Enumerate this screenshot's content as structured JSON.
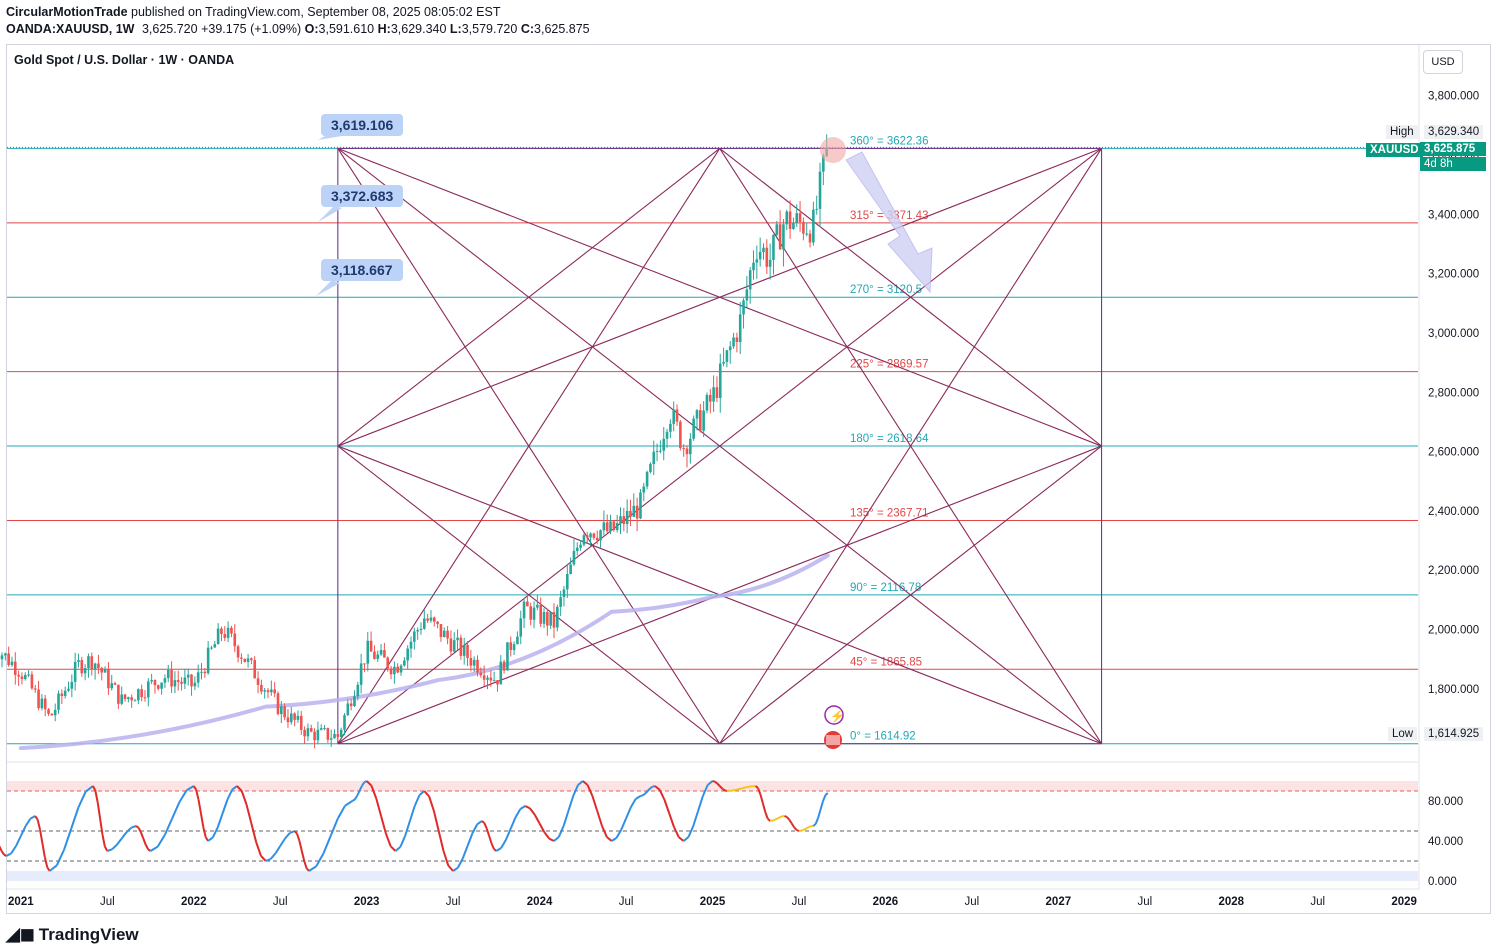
{
  "header": {
    "line1_author": "CircularMotionTrade",
    "line1_rest": " published on TradingView.com, September 08, 2025 08:05:02 EST",
    "symbol": "OANDA:XAUUSD, 1W",
    "last": "3,625.720",
    "change": "+39.175 (+1.09%)",
    "o_label": "O:",
    "o": "3,591.610",
    "h_label": "H:",
    "h": "3,629.340",
    "l_label": "L:",
    "l": "3,579.720",
    "c_label": "C:",
    "c": "3,625.875"
  },
  "chart_title": "Gold Spot / U.S. Dollar · 1W · OANDA",
  "currency_button": "USD",
  "callouts": [
    "3,619.106",
    "3,372.683",
    "3,118.667"
  ],
  "price_tags": {
    "high_label": "High",
    "high_value": "3,629.340",
    "symbol_tag": "XAUUSD",
    "last_value": "3,625.875",
    "countdown": "4d 8h",
    "low_label": "Low",
    "low_value": "1,614.925"
  },
  "footer": {
    "brand": "TradingView"
  },
  "colors": {
    "up": "#26a69a",
    "down": "#ef5350",
    "gann": "#8b2a5c",
    "teal_level": "#22a8b5",
    "red_level": "#e04848",
    "ma": "#b9b2ef",
    "osc_blue": "#2f8fe6",
    "osc_red": "#e02a2a",
    "osc_yellow": "#f5c518"
  },
  "chart_data": [
    {
      "type": "candlestick",
      "title": "Gold Spot / U.S. Dollar · 1W · OANDA",
      "ylim": [
        1560,
        3880
      ],
      "y_ticks": [
        1800,
        2000,
        2200,
        2400,
        2600,
        2800,
        3000,
        3200,
        3400,
        3600,
        3800
      ],
      "y_tick_labels": [
        "1,800.000",
        "2,000.000",
        "2,200.000",
        "2,400.000",
        "2,600.000",
        "2,800.000",
        "3,000.000",
        "3,200.000",
        "3,400.000",
        "3,600.000",
        "3,800.000"
      ],
      "x_tick_labels": [
        "2021",
        "Jul",
        "2022",
        "Jul",
        "2023",
        "Jul",
        "2024",
        "Jul",
        "2025",
        "Jul",
        "2026",
        "Jul",
        "2027",
        "Jul",
        "2028",
        "Jul",
        "2029"
      ],
      "x_tick_dates": [
        "2021-01",
        "2021-07",
        "2022-01",
        "2022-07",
        "2023-01",
        "2023-07",
        "2024-01",
        "2024-07",
        "2025-01",
        "2025-07",
        "2026-01",
        "2026-07",
        "2027-01",
        "2027-07",
        "2028-01",
        "2028-07",
        "2029-01"
      ],
      "price_path": [
        [
          "2020-11",
          1950
        ],
        [
          "2021-01",
          1860
        ],
        [
          "2021-03",
          1700
        ],
        [
          "2021-05",
          1880
        ],
        [
          "2021-06",
          1900
        ],
        [
          "2021-08",
          1760
        ],
        [
          "2021-11",
          1840
        ],
        [
          "2022-01",
          1810
        ],
        [
          "2022-03",
          2000
        ],
        [
          "2022-04",
          1940
        ],
        [
          "2022-07",
          1730
        ],
        [
          "2022-09",
          1650
        ],
        [
          "2022-11",
          1640
        ],
        [
          "2023-01",
          1930
        ],
        [
          "2023-03",
          1870
        ],
        [
          "2023-05",
          2040
        ],
        [
          "2023-08",
          1910
        ],
        [
          "2023-10",
          1830
        ],
        [
          "2023-12",
          2070
        ],
        [
          "2024-02",
          2020
        ],
        [
          "2024-04",
          2340
        ],
        [
          "2024-06",
          2330
        ],
        [
          "2024-08",
          2420
        ],
        [
          "2024-10",
          2740
        ],
        [
          "2024-11",
          2620
        ],
        [
          "2025-01",
          2780
        ],
        [
          "2025-03",
          3050
        ],
        [
          "2025-04",
          3300
        ],
        [
          "2025-05",
          3250
        ],
        [
          "2025-06",
          3380
        ],
        [
          "2025-08",
          3360
        ],
        [
          "2025-09",
          3625.875
        ]
      ],
      "moving_average": [
        [
          "2021-01",
          1600
        ],
        [
          "2022-06",
          1740
        ],
        [
          "2023-06",
          1830
        ],
        [
          "2024-06",
          2060
        ],
        [
          "2025-01",
          2110
        ],
        [
          "2025-09",
          2250
        ]
      ],
      "levels": [
        {
          "label": "360° = 3622.36",
          "value": 3622.36,
          "color": "teal"
        },
        {
          "label": "315° = 3371.43",
          "value": 3371.43,
          "color": "red"
        },
        {
          "label": "270° = 3120.5",
          "value": 3120.5,
          "color": "teal"
        },
        {
          "label": "225° = 2869.57",
          "value": 2869.57,
          "color": "red"
        },
        {
          "label": "180° = 2618.64",
          "value": 2618.64,
          "color": "teal"
        },
        {
          "label": "135° = 2367.71",
          "value": 2367.71,
          "color": "red"
        },
        {
          "label": "90° = 2116.78",
          "value": 2116.78,
          "color": "teal"
        },
        {
          "label": "45° = 1865.85",
          "value": 1865.85,
          "color": "red"
        },
        {
          "label": "0° = 1614.92",
          "value": 1614.92,
          "color": "teal"
        }
      ],
      "gann_square": {
        "x0": "2022-11",
        "x1": "2027-04",
        "y0": 1614.92,
        "y1": 3622.36
      }
    },
    {
      "type": "line",
      "title": "",
      "ylim": [
        -5,
        115
      ],
      "y_ticks": [
        0,
        40,
        80
      ],
      "y_tick_labels": [
        "0.000",
        "40.000",
        "80.000"
      ],
      "bands": [
        20,
        50,
        90
      ],
      "series": [
        {
          "values": [
            [
              "2020-11",
              45
            ],
            [
              "2020-12",
              25
            ],
            [
              "2021-02",
              65
            ],
            [
              "2021-03",
              10
            ],
            [
              "2021-06",
              95
            ],
            [
              "2021-07",
              30
            ],
            [
              "2021-09",
              55
            ],
            [
              "2021-10",
              30
            ],
            [
              "2022-01",
              95
            ],
            [
              "2022-02",
              40
            ],
            [
              "2022-04",
              95
            ],
            [
              "2022-06",
              20
            ],
            [
              "2022-08",
              50
            ],
            [
              "2022-09",
              10
            ],
            [
              "2022-12",
              80
            ],
            [
              "2023-01",
              100
            ],
            [
              "2023-03",
              30
            ],
            [
              "2023-05",
              90
            ],
            [
              "2023-07",
              10
            ],
            [
              "2023-09",
              60
            ],
            [
              "2023-10",
              30
            ],
            [
              "2023-12",
              75
            ],
            [
              "2024-02",
              40
            ],
            [
              "2024-04",
              100
            ],
            [
              "2024-06",
              40
            ],
            [
              "2024-08",
              85
            ],
            [
              "2024-09",
              95
            ],
            [
              "2024-11",
              40
            ],
            [
              "2025-01",
              100
            ],
            [
              "2025-02",
              90
            ],
            [
              "2025-04",
              95
            ],
            [
              "2025-05",
              60
            ],
            [
              "2025-06",
              65
            ],
            [
              "2025-07",
              50
            ],
            [
              "2025-08",
              55
            ],
            [
              "2025-09",
              88
            ]
          ]
        }
      ]
    }
  ]
}
